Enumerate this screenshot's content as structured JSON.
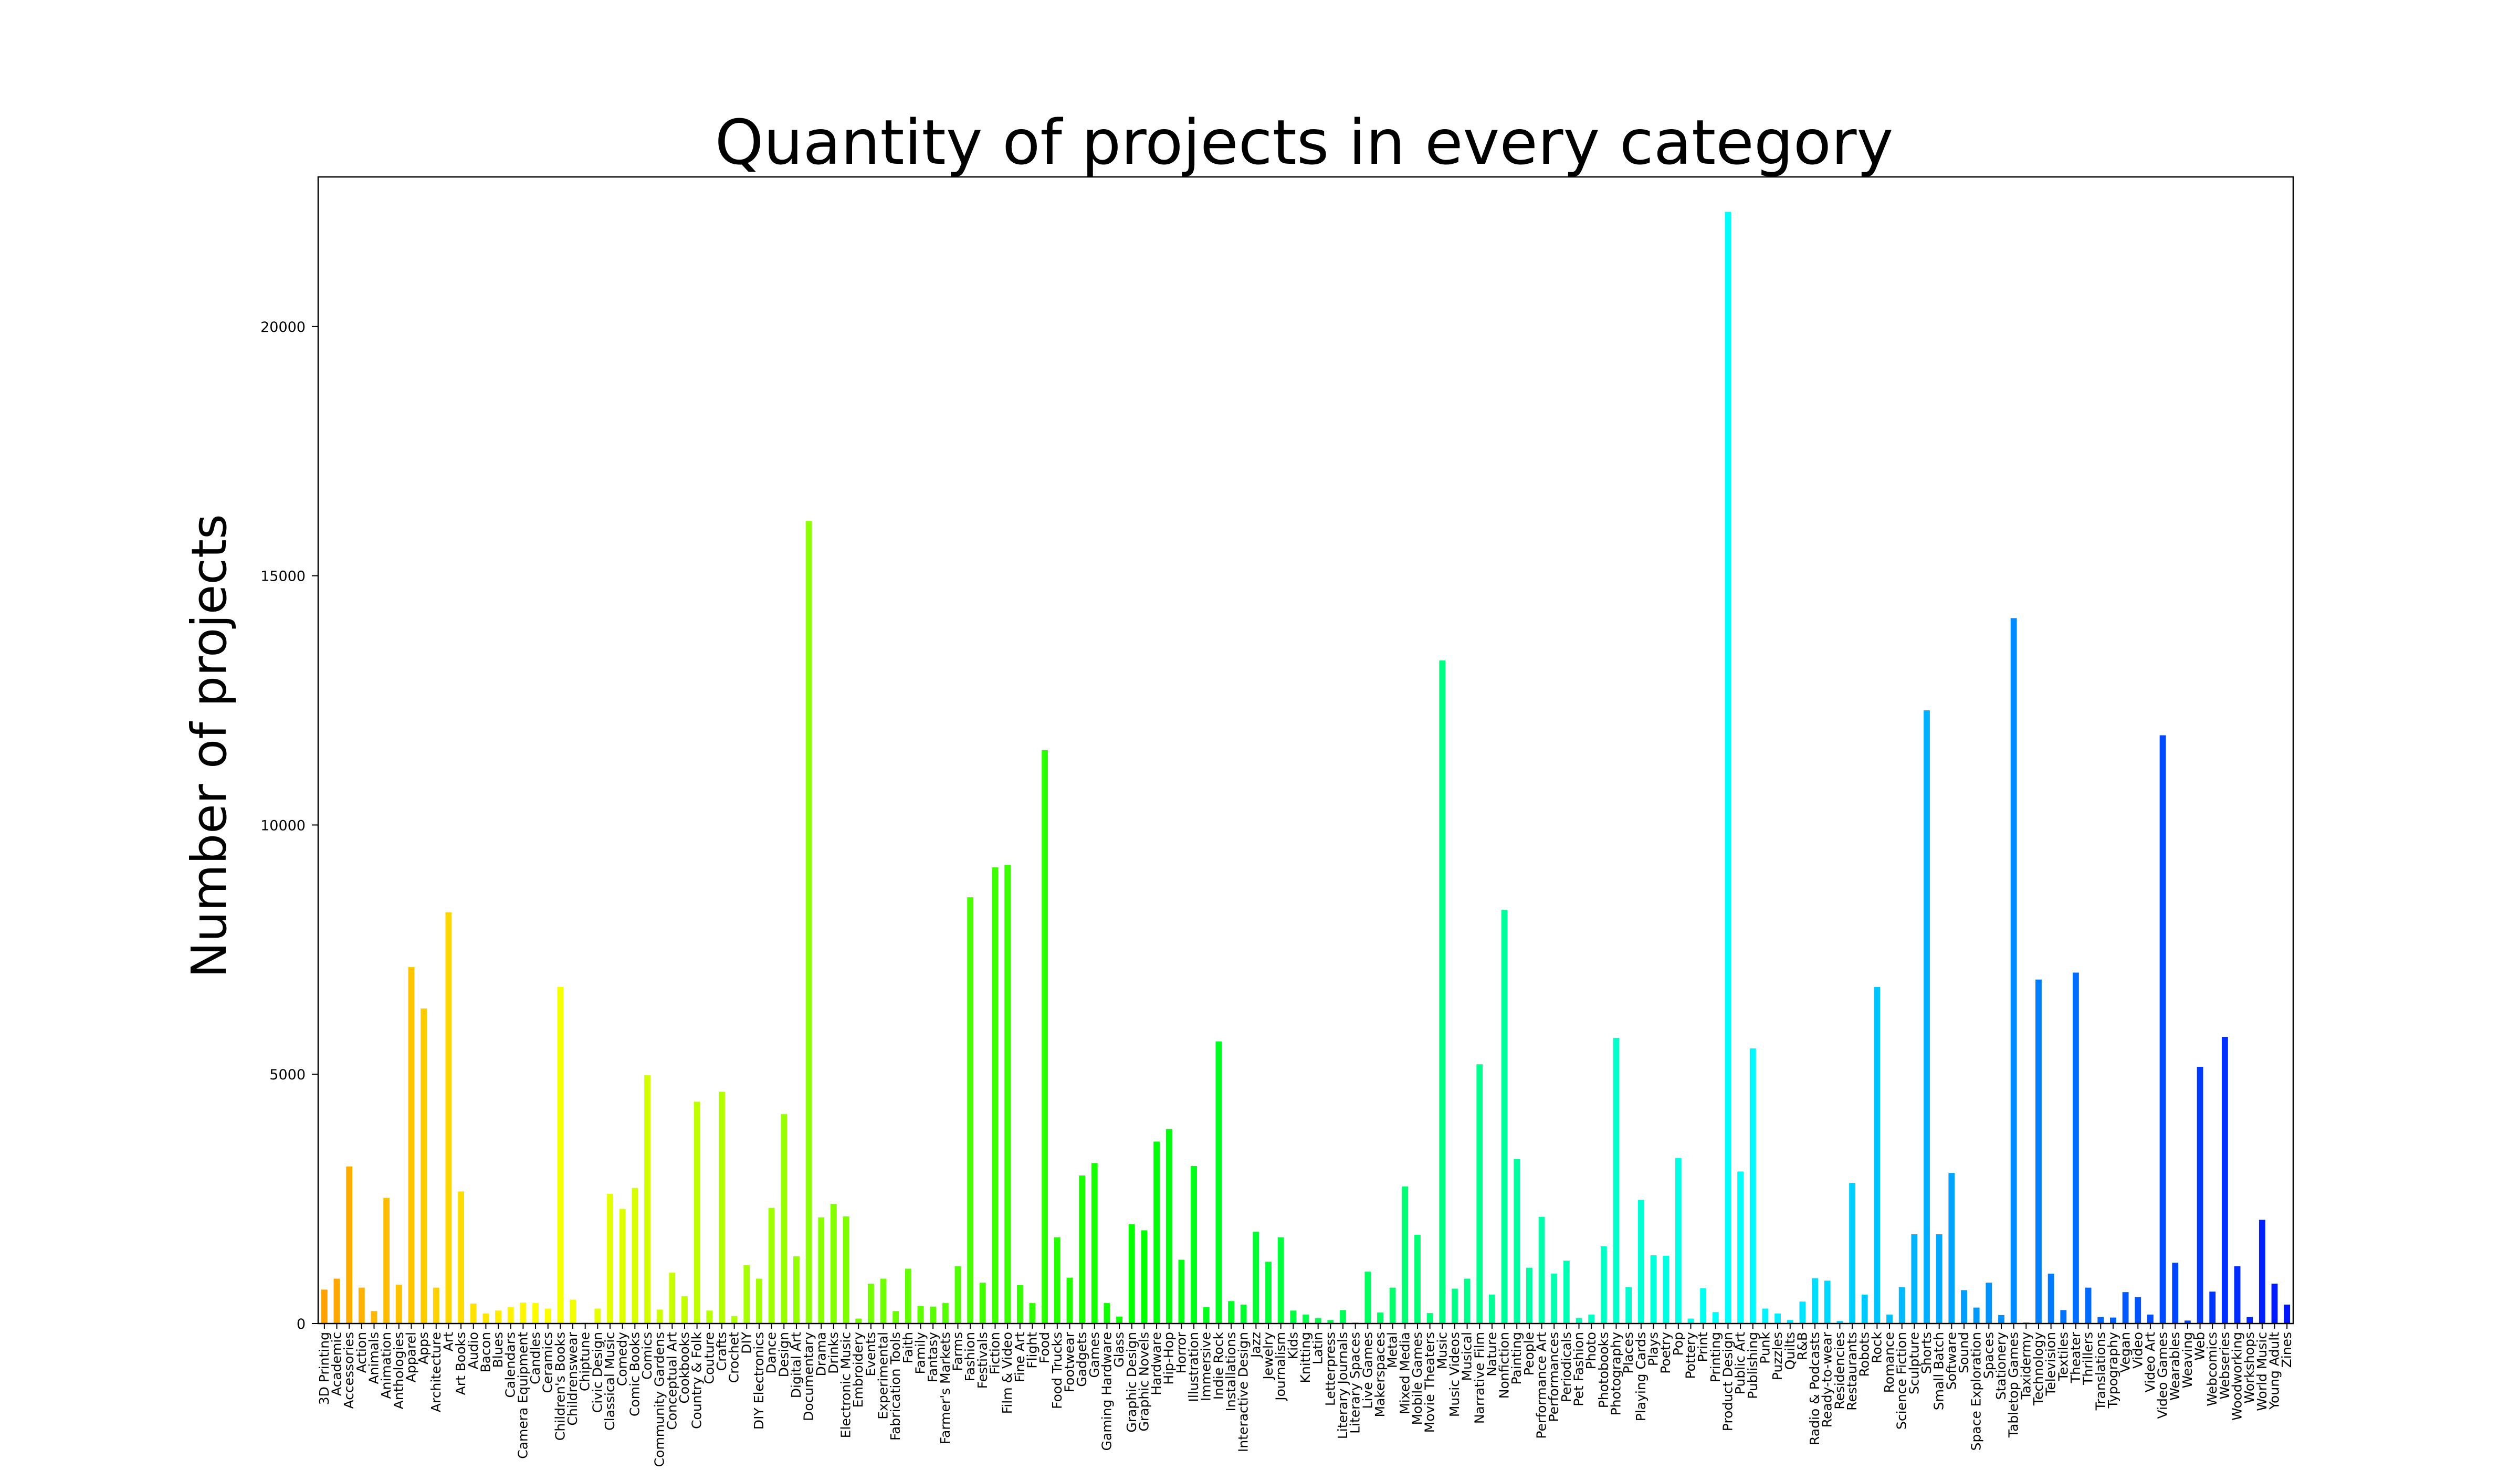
{
  "chart_data": {
    "type": "bar",
    "title": "Quantity of projects in every category",
    "xlabel": "",
    "ylabel": "Number of projects",
    "ylim": [
      0,
      23000
    ],
    "yticks": [
      0,
      5000,
      10000,
      15000,
      20000
    ],
    "grid": false,
    "legend": "none",
    "colormap": "gist_rainbow (orange → yellow → green → cyan → blue)",
    "categories": [
      "3D Printing",
      "Academic",
      "Accessories",
      "Action",
      "Animals",
      "Animation",
      "Anthologies",
      "Apparel",
      "Apps",
      "Architecture",
      "Art",
      "Art Books",
      "Audio",
      "Bacon",
      "Blues",
      "Calendars",
      "Camera Equipment",
      "Candles",
      "Ceramics",
      "Children's Books",
      "Childrenswear",
      "Chiptune",
      "Civic Design",
      "Classical Music",
      "Comedy",
      "Comic Books",
      "Comics",
      "Community Gardens",
      "Conceptual Art",
      "Cookbooks",
      "Country & Folk",
      "Couture",
      "Crafts",
      "Crochet",
      "DIY",
      "DIY Electronics",
      "Dance",
      "Design",
      "Digital Art",
      "Documentary",
      "Drama",
      "Drinks",
      "Electronic Music",
      "Embroidery",
      "Events",
      "Experimental",
      "Fabrication Tools",
      "Faith",
      "Family",
      "Fantasy",
      "Farmer's Markets",
      "Farms",
      "Fashion",
      "Festivals",
      "Fiction",
      "Film & Video",
      "Fine Art",
      "Flight",
      "Food",
      "Food Trucks",
      "Footwear",
      "Gadgets",
      "Games",
      "Gaming Hardware",
      "Glass",
      "Graphic Design",
      "Graphic Novels",
      "Hardware",
      "Hip-Hop",
      "Horror",
      "Illustration",
      "Immersive",
      "Indie Rock",
      "Installations",
      "Interactive Design",
      "Jazz",
      "Jewelry",
      "Journalism",
      "Kids",
      "Knitting",
      "Latin",
      "Letterpress",
      "Literary Journals",
      "Literary Spaces",
      "Live Games",
      "Makerspaces",
      "Metal",
      "Mixed Media",
      "Mobile Games",
      "Movie Theaters",
      "Music",
      "Music Videos",
      "Musical",
      "Narrative Film",
      "Nature",
      "Nonfiction",
      "Painting",
      "People",
      "Performance Art",
      "Performances",
      "Periodicals",
      "Pet Fashion",
      "Photo",
      "Photobooks",
      "Photography",
      "Places",
      "Playing Cards",
      "Plays",
      "Poetry",
      "Pop",
      "Pottery",
      "Print",
      "Printing",
      "Product Design",
      "Public Art",
      "Publishing",
      "Punk",
      "Puzzles",
      "Quilts",
      "R&B",
      "Radio & Podcasts",
      "Ready-to-wear",
      "Residencies",
      "Restaurants",
      "Robots",
      "Rock",
      "Romance",
      "Science Fiction",
      "Sculpture",
      "Shorts",
      "Small Batch",
      "Software",
      "Sound",
      "Space Exploration",
      "Spaces",
      "Stationery",
      "Tabletop Games",
      "Taxidermy",
      "Technology",
      "Television",
      "Textiles",
      "Theater",
      "Thrillers",
      "Translations",
      "Typography",
      "Vegan",
      "Video",
      "Video Art",
      "Video Games",
      "Wearables",
      "Weaving",
      "Web",
      "Webcomics",
      "Webseries",
      "Woodworking",
      "Workshops",
      "World Music",
      "Young Adult",
      "Zines"
    ],
    "values": [
      680,
      900,
      3150,
      720,
      250,
      2520,
      780,
      7150,
      6320,
      720,
      8250,
      2650,
      400,
      200,
      260,
      330,
      420,
      410,
      300,
      6750,
      480,
      20,
      300,
      2600,
      2300,
      2720,
      4980,
      280,
      1020,
      550,
      4450,
      260,
      4650,
      150,
      1170,
      900,
      2320,
      4200,
      1350,
      16100,
      2130,
      2400,
      2150,
      100,
      800,
      900,
      250,
      1100,
      350,
      340,
      410,
      1150,
      8550,
      820,
      9150,
      9200,
      770,
      410,
      11500,
      1730,
      920,
      2970,
      3220,
      410,
      140,
      1990,
      1870,
      3650,
      3900,
      1280,
      3160,
      330,
      5660,
      450,
      380,
      1840,
      1240,
      1730,
      260,
      180,
      110,
      70,
      270,
      20,
      1040,
      220,
      720,
      2750,
      1780,
      210,
      13300,
      700,
      900,
      5200,
      580,
      8300,
      3300,
      1120,
      2140,
      1000,
      1260,
      110,
      180,
      1550,
      5730,
      730,
      2480,
      1370,
      1360,
      3320,
      100,
      710,
      230,
      22300,
      3050,
      5520,
      300,
      200,
      70,
      440,
      910,
      860,
      50,
      2820,
      580,
      6750,
      180,
      730,
      1790,
      12300,
      1790,
      3020,
      670,
      320,
      820,
      170,
      14150,
      20,
      6900,
      1000,
      270,
      7040,
      720,
      130,
      120,
      630,
      530,
      180,
      11800,
      1220,
      60,
      5150,
      640,
      5750,
      1150,
      130,
      2080,
      800,
      380
    ]
  }
}
